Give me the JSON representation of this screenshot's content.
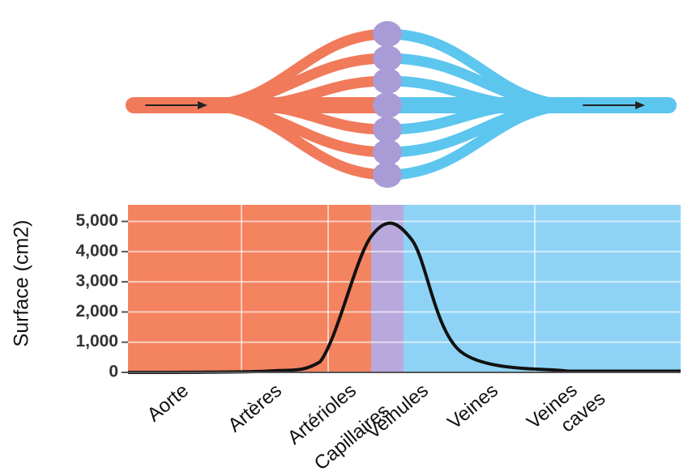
{
  "chart_data": {
    "type": "line",
    "y_label": "Surface (cm2)",
    "categories": [
      "Aorte",
      "Artères",
      "Artérioles",
      "Capillaires",
      "Veinules",
      "Veines",
      "Veines caves"
    ],
    "series": [
      {
        "name": "Surface",
        "color": "#111111",
        "values": [
          0,
          40,
          350,
          4500,
          4400,
          700,
          40
        ]
      }
    ],
    "ylim": [
      0,
      5550
    ],
    "yticks": [
      0,
      {
        "value": 1000,
        "label": "1,000"
      },
      {
        "value": 2000,
        "label": "2,000"
      },
      {
        "value": 3000,
        "label": "3,000"
      },
      {
        "value": 4000,
        "label": "4,000"
      },
      {
        "value": 5000,
        "label": "5,000"
      }
    ],
    "grid": true
  }
}
